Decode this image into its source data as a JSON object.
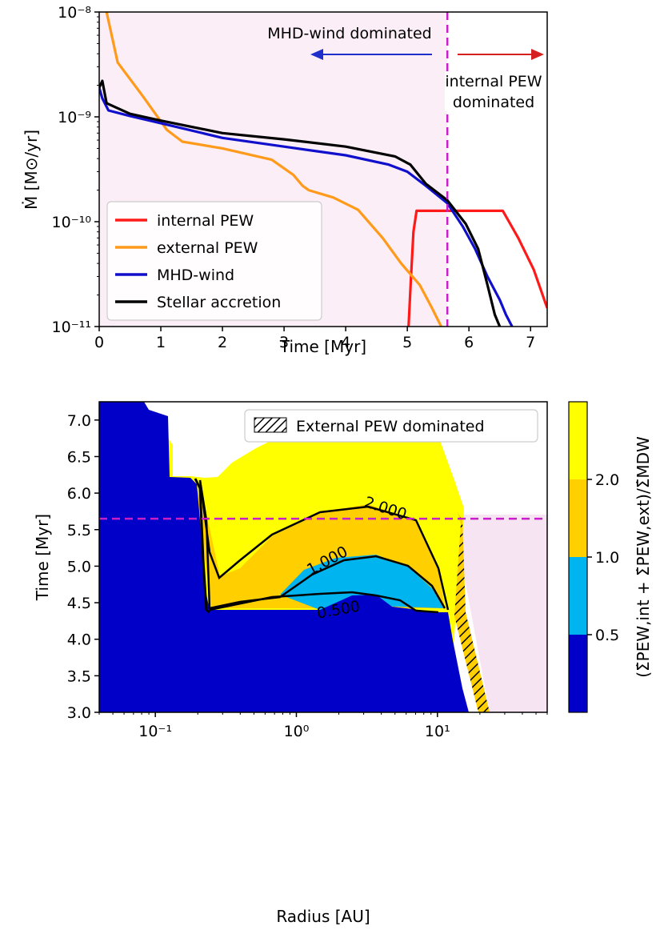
{
  "chart_data": [
    {
      "type": "line",
      "xlabel": "Time [Myr]",
      "ylabel": "Ṁ [M⊙/yr]",
      "yscale": "log",
      "xlim": [
        0,
        7.27
      ],
      "ylim": [
        1e-11,
        1e-08
      ],
      "xticks": [
        "0",
        "1",
        "2",
        "3",
        "4",
        "5",
        "6",
        "7"
      ],
      "yticks": [
        "10⁻¹¹",
        "10⁻¹⁰",
        "10⁻⁹",
        "10⁻⁸"
      ],
      "shaded_region": {
        "from": 0,
        "to": 5.65,
        "color": "#fbeef7"
      },
      "vline": {
        "x": 5.65,
        "color": "#c81fc8"
      },
      "annotations": [
        {
          "text": "MHD-wind dominated",
          "color": "#1f2fcc",
          "arrow": "left"
        },
        {
          "text": "internal PEW",
          "color": "#d62020",
          "arrow": "right"
        },
        {
          "text": "dominated",
          "color": "#d62020"
        }
      ],
      "series": [
        {
          "name": "internal PEW",
          "color": "#ff1a1a",
          "points": [
            [
              5.02,
              1e-11
            ],
            [
              5.06,
              3e-11
            ],
            [
              5.1,
              8e-11
            ],
            [
              5.15,
              1.27e-10
            ],
            [
              6.55,
              1.27e-10
            ],
            [
              6.8,
              7e-11
            ],
            [
              7.05,
              3.5e-11
            ],
            [
              7.27,
              1.5e-11
            ]
          ]
        },
        {
          "name": "external PEW",
          "color": "#ff9a1a",
          "points": [
            [
              0.12,
              1e-08
            ],
            [
              0.3,
              3.3e-09
            ],
            [
              0.7,
              1.6e-09
            ],
            [
              1.1,
              7.5e-10
            ],
            [
              1.35,
              5.8e-10
            ],
            [
              2.0,
              5e-10
            ],
            [
              2.8,
              3.9e-10
            ],
            [
              3.15,
              2.8e-10
            ],
            [
              3.3,
              2.2e-10
            ],
            [
              3.4,
              2e-10
            ],
            [
              3.8,
              1.7e-10
            ],
            [
              4.2,
              1.3e-10
            ],
            [
              4.6,
              7e-11
            ],
            [
              4.9,
              4e-11
            ],
            [
              5.2,
              2.5e-11
            ],
            [
              5.4,
              1.5e-11
            ],
            [
              5.55,
              1e-11
            ]
          ]
        },
        {
          "name": "MHD-wind",
          "color": "#1010cc",
          "points": [
            [
              0.0,
              1.9e-09
            ],
            [
              0.05,
              1.5e-09
            ],
            [
              0.15,
              1.15e-09
            ],
            [
              0.5,
              1.02e-09
            ],
            [
              1.0,
              8.7e-10
            ],
            [
              2.0,
              6.3e-10
            ],
            [
              3.0,
              5.2e-10
            ],
            [
              4.0,
              4.3e-10
            ],
            [
              4.7,
              3.5e-10
            ],
            [
              5.0,
              3e-10
            ],
            [
              5.3,
              2.2e-10
            ],
            [
              5.65,
              1.5e-10
            ],
            [
              5.9,
              9e-11
            ],
            [
              6.1,
              5.5e-11
            ],
            [
              6.3,
              3e-11
            ],
            [
              6.5,
              1.8e-11
            ],
            [
              6.6,
              1.3e-11
            ],
            [
              6.7,
              1e-11
            ]
          ]
        },
        {
          "name": "Stellar accretion",
          "color": "#000000",
          "points": [
            [
              0.0,
              1.9e-09
            ],
            [
              0.05,
              2.2e-09
            ],
            [
              0.12,
              1.35e-09
            ],
            [
              0.5,
              1.07e-09
            ],
            [
              1.0,
              9.2e-10
            ],
            [
              2.0,
              7e-10
            ],
            [
              3.0,
              6.1e-10
            ],
            [
              4.0,
              5.2e-10
            ],
            [
              4.8,
              4.2e-10
            ],
            [
              5.05,
              3.5e-10
            ],
            [
              5.3,
              2.3e-10
            ],
            [
              5.65,
              1.6e-10
            ],
            [
              5.95,
              9.5e-11
            ],
            [
              6.15,
              5.5e-11
            ],
            [
              6.3,
              2.5e-11
            ],
            [
              6.42,
              1.3e-11
            ],
            [
              6.5,
              1e-11
            ]
          ]
        }
      ]
    },
    {
      "type": "heatmap",
      "xlabel": "Radius [AU]",
      "ylabel": "Time [Myr]",
      "xscale": "log",
      "xlim": [
        0.04,
        60
      ],
      "ylim": [
        3.0,
        7.25
      ],
      "xticks": [
        "10⁻¹",
        "10⁰",
        "10¹"
      ],
      "yticks": [
        "3.0",
        "3.5",
        "4.0",
        "4.5",
        "5.0",
        "5.5",
        "6.0",
        "6.5",
        "7.0"
      ],
      "legend": "External PEW dominated",
      "contour_labels": [
        "2.000",
        "1.000",
        "0.500"
      ],
      "levels": [
        0.5,
        1.0,
        2.0
      ],
      "level_colors": [
        "#0000c8",
        "#00b4f0",
        "#ffcf00",
        "#ffff00"
      ],
      "hline": {
        "y": 5.65,
        "color": "#c81fc8"
      },
      "colorbar": {
        "label": "(Σ̇PEW,int + Σ̇PEW,ext)/Σ̇MDW",
        "ticks": [
          "0.5",
          "1.0",
          "2.0"
        ]
      }
    }
  ]
}
